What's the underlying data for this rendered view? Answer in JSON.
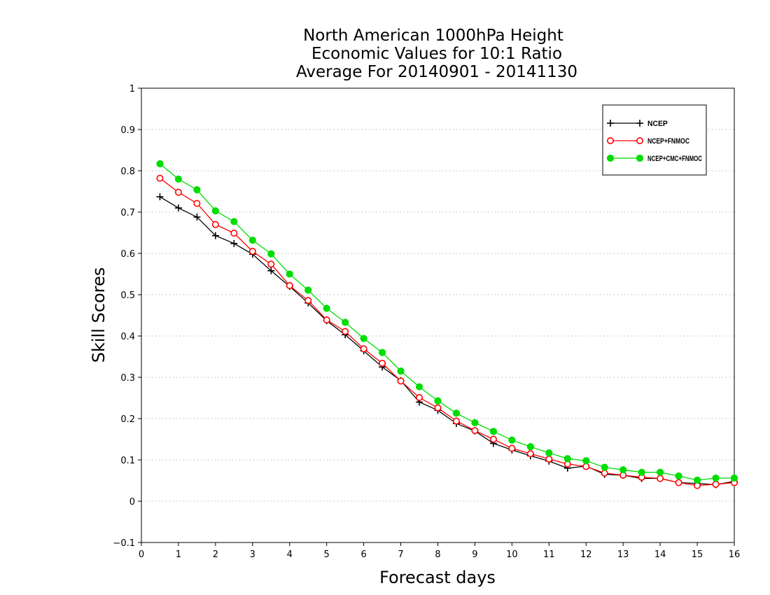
{
  "chart_data": {
    "type": "line",
    "title": [
      "North American 1000hPa Height",
      "Economic Values for 10:1 Ratio",
      "Average For 20140901 - 20141130"
    ],
    "xlabel": "Forecast days",
    "ylabel": "Skill Scores",
    "xlim": [
      0,
      16
    ],
    "ylim": [
      -0.1,
      1
    ],
    "xticks": [
      "0",
      "1",
      "2",
      "3",
      "4",
      "5",
      "6",
      "7",
      "8",
      "9",
      "10",
      "11",
      "12",
      "13",
      "14",
      "15",
      "16"
    ],
    "yticks": [
      "−0.1",
      "0",
      "0.1",
      "0.2",
      "0.3",
      "0.4",
      "0.5",
      "0.6",
      "0.7",
      "0.8",
      "0.9",
      "1"
    ],
    "grid": "dotted horizontal",
    "legend_position": "top-right",
    "x": [
      0.5,
      1,
      1.5,
      2,
      2.5,
      3,
      3.5,
      4,
      4.5,
      5,
      5.5,
      6,
      6.5,
      7,
      7.5,
      8,
      8.5,
      9,
      9.5,
      10,
      10.5,
      11,
      11.5,
      12,
      12.5,
      13,
      13.5,
      14,
      14.5,
      15,
      15.5,
      16
    ],
    "series": [
      {
        "name": "NCEP",
        "color": "#000000",
        "marker": "plus",
        "values": [
          0.737,
          0.71,
          0.688,
          0.643,
          0.624,
          0.598,
          0.558,
          0.52,
          0.48,
          0.437,
          0.403,
          0.364,
          0.325,
          0.292,
          0.24,
          0.22,
          0.188,
          0.17,
          0.14,
          0.124,
          0.11,
          0.097,
          0.08,
          0.085,
          0.065,
          0.063,
          0.055,
          0.055,
          0.045,
          0.043,
          0.04,
          0.048
        ]
      },
      {
        "name": "NCEP+FNMOC",
        "color": "#ff0000",
        "marker": "open-circle",
        "values": [
          0.782,
          0.748,
          0.721,
          0.67,
          0.649,
          0.605,
          0.574,
          0.522,
          0.486,
          0.439,
          0.411,
          0.369,
          0.334,
          0.291,
          0.251,
          0.226,
          0.194,
          0.171,
          0.15,
          0.128,
          0.115,
          0.102,
          0.09,
          0.084,
          0.068,
          0.063,
          0.058,
          0.055,
          0.045,
          0.038,
          0.041,
          0.045
        ]
      },
      {
        "name": "NCEP+CMC+FNMOC",
        "color": "#00dd00",
        "marker": "filled-circle",
        "values": [
          0.817,
          0.78,
          0.754,
          0.703,
          0.677,
          0.632,
          0.599,
          0.55,
          0.511,
          0.467,
          0.433,
          0.394,
          0.36,
          0.315,
          0.277,
          0.243,
          0.213,
          0.19,
          0.169,
          0.148,
          0.132,
          0.117,
          0.103,
          0.098,
          0.082,
          0.076,
          0.07,
          0.07,
          0.061,
          0.051,
          0.056,
          0.056
        ]
      }
    ]
  }
}
